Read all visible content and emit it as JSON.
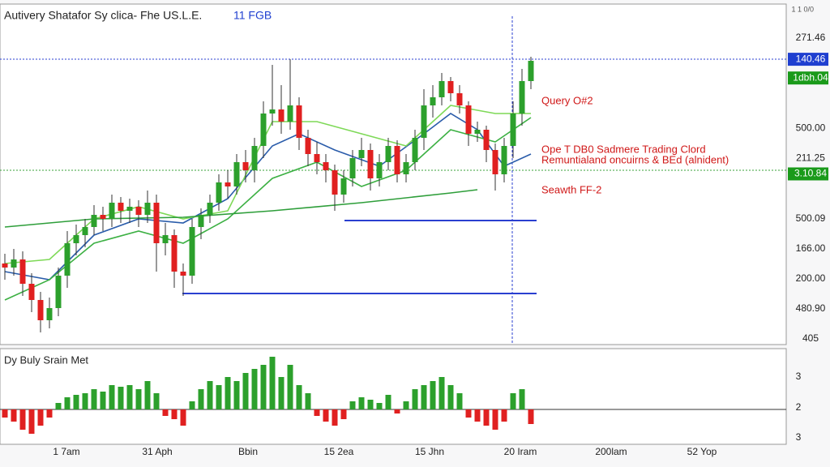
{
  "chart_data": [
    {
      "type": "candlestick",
      "title": "Autivery Shatafor Sy clica- Fhe US.L.E.",
      "title_suffix": "11 FGB",
      "corner_label": "1 1 0/0",
      "up_color": "#2ca02c",
      "down_color": "#e02020",
      "ylim": [
        0,
        420
      ],
      "open": [
        100,
        95,
        105,
        75,
        55,
        30,
        45,
        85,
        125,
        135,
        145,
        160,
        155,
        175,
        165,
        170,
        160,
        175,
        125,
        135,
        90,
        85,
        145,
        160,
        175,
        200,
        195,
        225,
        215,
        245,
        285,
        290,
        275,
        295,
        255,
        235,
        225,
        215,
        185,
        205,
        230,
        240,
        205,
        225,
        245,
        210,
        225,
        255,
        295,
        305,
        325,
        310,
        295,
        260,
        265,
        240,
        210,
        245,
        285,
        325
      ],
      "high": [
        112,
        118,
        115,
        88,
        65,
        58,
        95,
        140,
        148,
        155,
        172,
        170,
        185,
        182,
        180,
        178,
        190,
        185,
        150,
        142,
        100,
        155,
        168,
        185,
        210,
        215,
        235,
        240,
        255,
        300,
        345,
        320,
        352,
        305,
        265,
        250,
        235,
        222,
        215,
        240,
        255,
        248,
        235,
        255,
        252,
        235,
        265,
        315,
        320,
        335,
        330,
        320,
        300,
        275,
        270,
        248,
        255,
        300,
        340,
        355
      ],
      "low": [
        80,
        85,
        60,
        40,
        15,
        20,
        35,
        70,
        110,
        120,
        135,
        140,
        145,
        150,
        150,
        145,
        150,
        90,
        110,
        70,
        60,
        75,
        130,
        150,
        165,
        180,
        185,
        200,
        200,
        230,
        270,
        260,
        265,
        240,
        220,
        210,
        200,
        165,
        175,
        195,
        220,
        190,
        195,
        215,
        200,
        200,
        215,
        240,
        280,
        295,
        300,
        285,
        245,
        250,
        225,
        190,
        200,
        230,
        270,
        315
      ],
      "close": [
        95,
        105,
        75,
        55,
        30,
        45,
        85,
        125,
        135,
        145,
        160,
        155,
        175,
        165,
        170,
        160,
        175,
        125,
        135,
        90,
        85,
        145,
        160,
        175,
        200,
        195,
        225,
        215,
        245,
        285,
        290,
        275,
        295,
        255,
        235,
        225,
        215,
        185,
        205,
        230,
        240,
        205,
        225,
        245,
        210,
        225,
        255,
        295,
        305,
        325,
        310,
        295,
        260,
        265,
        240,
        210,
        245,
        285,
        325,
        350
      ],
      "moving_averages": [
        {
          "color": "#2a5caa",
          "x": [
            0,
            5,
            10,
            15,
            20,
            25,
            30,
            33,
            37,
            42,
            47,
            50,
            53,
            56,
            59
          ],
          "values": [
            90,
            80,
            135,
            155,
            150,
            180,
            245,
            260,
            240,
            220,
            260,
            285,
            265,
            220,
            235
          ]
        },
        {
          "color": "#7ed957",
          "x": [
            0,
            5,
            10,
            15,
            20,
            25,
            30,
            35,
            40,
            45,
            50,
            55,
            59
          ],
          "values": [
            100,
            105,
            155,
            170,
            155,
            165,
            275,
            275,
            260,
            245,
            295,
            285,
            285
          ]
        },
        {
          "color": "#3cb043",
          "x": [
            0,
            5,
            10,
            15,
            20,
            25,
            30,
            35,
            40,
            45,
            50,
            55,
            59
          ],
          "values": [
            55,
            80,
            125,
            140,
            125,
            155,
            205,
            225,
            195,
            215,
            265,
            250,
            280
          ]
        },
        {
          "color": "#2e9e3a",
          "x": [
            0,
            10,
            20,
            30,
            40,
            50,
            53
          ],
          "values": [
            145,
            155,
            157,
            165,
            175,
            187,
            191
          ]
        }
      ],
      "price_labels": [
        "271.46",
        "140.46",
        "1dbh.04",
        "500.00",
        "211.25",
        "3.10.84",
        "500.09",
        "166.00",
        "200.00",
        "480.90",
        "405"
      ],
      "price_label_backgrounds": [
        null,
        "#1f3fd0",
        "#1a9a1a",
        null,
        null,
        "#1a9a1a",
        null,
        null,
        null,
        null,
        null
      ],
      "annotations": [
        {
          "text": "Query O#2",
          "color": "#d01818"
        },
        {
          "text": "Ope T DB0 Sadmere Trading Clord",
          "color": "#d01818"
        },
        {
          "text": "Remuntialand oncuirns & BEd (alnident)",
          "color": "#d01818"
        },
        {
          "text": "Seawth FF-2",
          "color": "#d01818"
        }
      ]
    },
    {
      "type": "bar",
      "title": "Dy Buly Srain Met",
      "up_color": "#2ca02c",
      "down_color": "#e02020",
      "ylim": [
        -43,
        75
      ],
      "values": [
        -10,
        -15,
        -25,
        -30,
        -20,
        -10,
        8,
        15,
        18,
        20,
        25,
        22,
        30,
        28,
        30,
        25,
        35,
        20,
        -8,
        -12,
        -20,
        10,
        25,
        35,
        30,
        40,
        35,
        45,
        50,
        55,
        65,
        40,
        55,
        30,
        20,
        -8,
        -15,
        -20,
        -12,
        10,
        15,
        12,
        8,
        18,
        -5,
        10,
        25,
        30,
        35,
        40,
        30,
        20,
        -10,
        -15,
        -20,
        -25,
        -15,
        20,
        25,
        -18
      ],
      "axis_labels": [
        "3",
        "2",
        "3"
      ],
      "x_labels": [
        "1 7am",
        "31 Aph",
        "Bbin",
        "15 2ea",
        "15 Jhn",
        "20 Iram",
        "200lam",
        "52 Yop"
      ]
    }
  ]
}
